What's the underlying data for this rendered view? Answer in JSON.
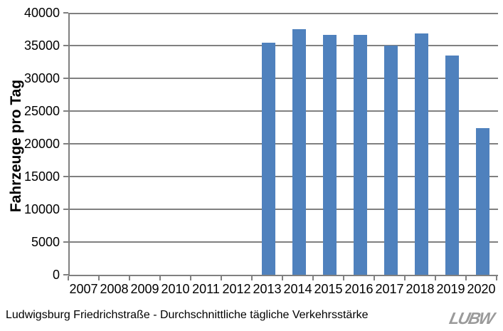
{
  "chart_data": {
    "type": "bar",
    "title": "",
    "categories": [
      "2007",
      "2008",
      "2009",
      "2010",
      "2011",
      "2012",
      "2013",
      "2014",
      "2015",
      "2016",
      "2017",
      "2018",
      "2019",
      "2020"
    ],
    "values": [
      null,
      null,
      null,
      null,
      null,
      null,
      35400,
      37500,
      36600,
      36600,
      35000,
      36800,
      33500,
      22400
    ],
    "xlabel": "",
    "ylabel": "Fahrzeuge pro Tag",
    "ylim": [
      0,
      40000
    ],
    "ytick_step": 5000,
    "yticks": [
      0,
      5000,
      10000,
      15000,
      20000,
      25000,
      30000,
      35000,
      40000
    ],
    "grid": true,
    "legend": null,
    "bar_color": "#4F81BD",
    "axis_color": "#808080"
  },
  "caption": "Ludwigsburg Friedrichstraße - Durchschnittliche tägliche Verkehrsstärke",
  "logo_text": "LUBW"
}
